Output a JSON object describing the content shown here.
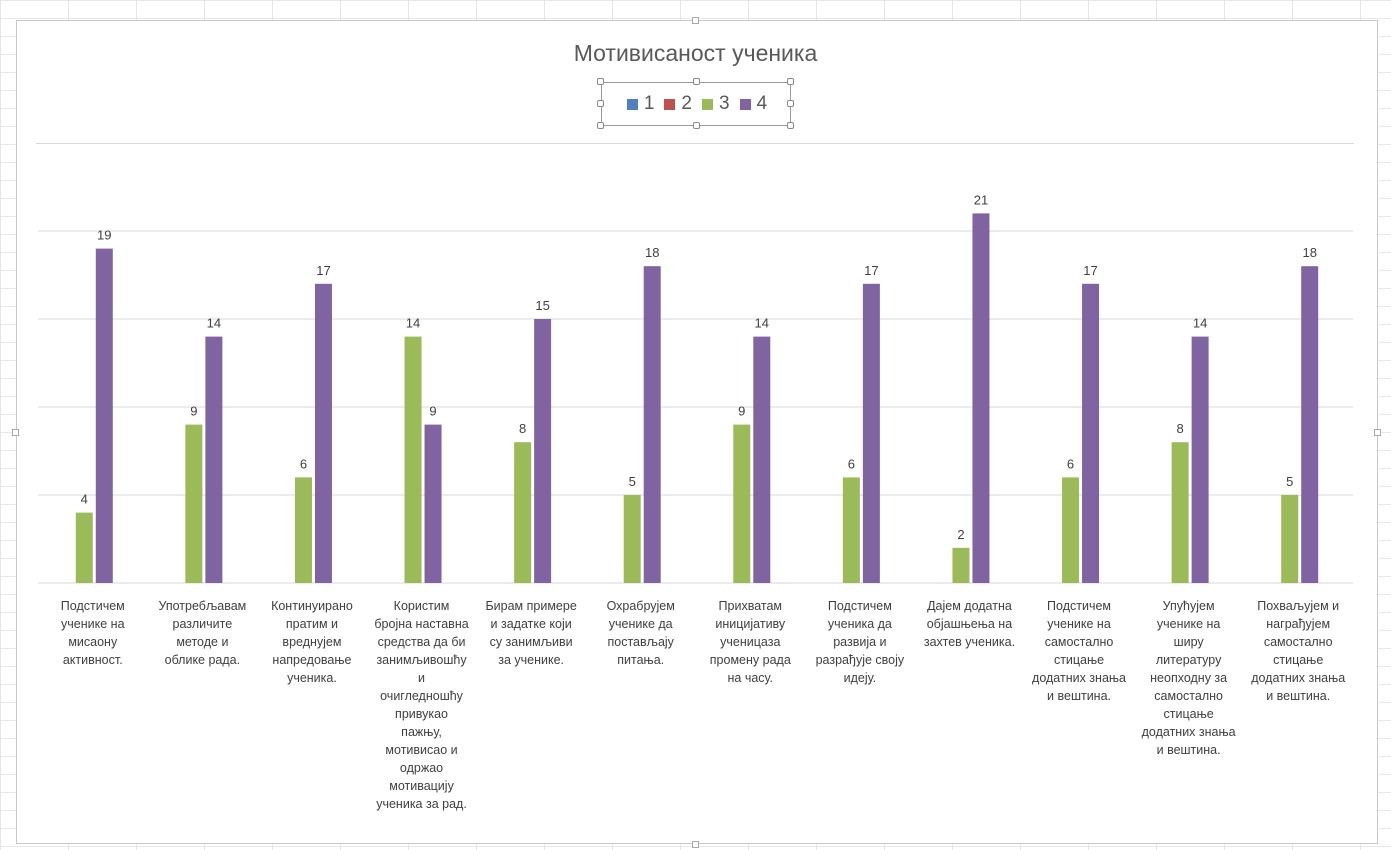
{
  "chart_data": {
    "type": "bar",
    "title": "Мотивисаност ученика",
    "legend_position": "top",
    "grid": true,
    "ylim": [
      0,
      24
    ],
    "series": [
      {
        "name": "1",
        "color": "#4F81BD",
        "values": [
          0,
          0,
          0,
          0,
          0,
          0,
          0,
          0,
          0,
          0,
          0,
          0
        ]
      },
      {
        "name": "2",
        "color": "#C0504D",
        "values": [
          0,
          0,
          0,
          0,
          0,
          0,
          0,
          0,
          0,
          0,
          0,
          0
        ]
      },
      {
        "name": "3",
        "color": "#9BBB59",
        "values": [
          4,
          9,
          6,
          14,
          8,
          5,
          9,
          6,
          2,
          6,
          8,
          5
        ]
      },
      {
        "name": "4",
        "color": "#8064A2",
        "values": [
          19,
          14,
          17,
          9,
          15,
          18,
          14,
          17,
          21,
          17,
          14,
          18
        ]
      }
    ],
    "categories": [
      "Подстичем\nученике на\nмисаону\nактивност.",
      "Употребљавам\nразличите\nметоде и\nоблике рада.",
      "Континуирано\nпратим и\nвреднујем\nнапредовање\nученика.",
      "Користим\nбројна наставна\nсредства да би\nзанимљивошћу\nи\nочигледношћу\nпривукао\nпажњу,\nмотивисао и\nодржао\nмотивацију\nученика за рад.",
      "Бирам примере\nи задатке који\nсу занимљиви\nза ученике.",
      "Охрабрујем\nученике да\nпостављају\nпитања.",
      "Прихватам\nиницијативу\nученицаза\nпромену рада\nна часу.",
      "Подстичем\nученика да\nразвија и\nразрађује своју\nидеју.",
      "Дајем додатна\nобјашњења на\nзахтев ученика.",
      "Подстичем\nученике на\nсамостално\nстицање\nдодатних знања\nи вештина.",
      "Упућујем\nученике на\nширу\nлитературу\nнеопходну за\nсамостално\nстицање\nдодатних знања\nи вештина.",
      "Похваљујем и\nнаграђујем\nсамостално\nстицање\nдодатних знања\nи вештина."
    ]
  }
}
